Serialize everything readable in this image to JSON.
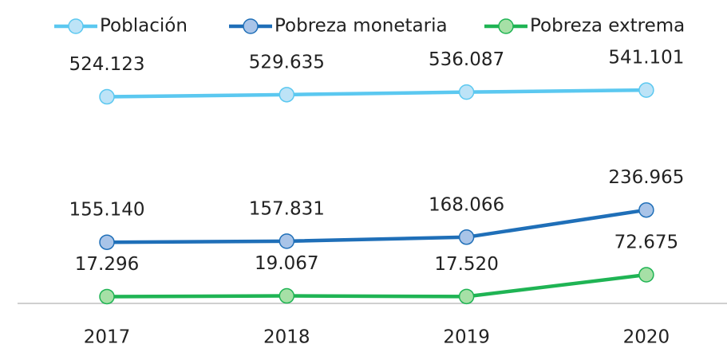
{
  "chart_data": {
    "type": "line",
    "categories": [
      "2017",
      "2018",
      "2019",
      "2020"
    ],
    "series": [
      {
        "name": "Población",
        "color": "#5bc8f0",
        "marker_fill": "#bde3f7",
        "values": [
          524123,
          529635,
          536087,
          541101
        ],
        "value_labels": [
          "524.123",
          "529.635",
          "536.087",
          "541.101"
        ]
      },
      {
        "name": "Pobreza monetaria",
        "color": "#1f6fb8",
        "marker_fill": "#a9c4e8",
        "values": [
          155140,
          157831,
          168066,
          236965
        ],
        "value_labels": [
          "155.140",
          "157.831",
          "168.066",
          "236.965"
        ]
      },
      {
        "name": "Pobreza extrema",
        "color": "#1fb454",
        "marker_fill": "#a6e0a6",
        "values": [
          17296,
          19067,
          17520,
          72675
        ],
        "value_labels": [
          "17.296",
          "19.067",
          "17.520",
          "72.675"
        ]
      }
    ],
    "ylim": [
      0,
      600000
    ],
    "legend": "top"
  }
}
